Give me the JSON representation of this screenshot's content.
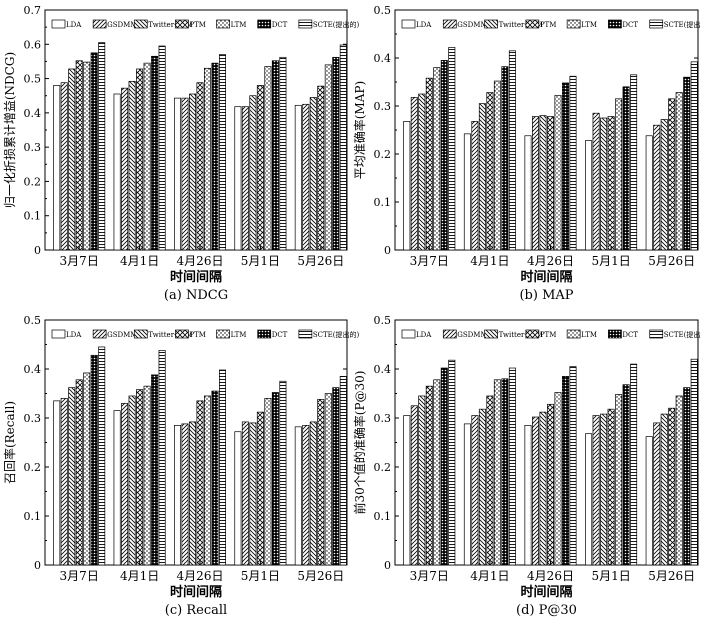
{
  "figure": {
    "colors": {
      "axis": "#000000",
      "background": "#ffffff",
      "bar_stroke": "#000000"
    },
    "legend_placement": "top",
    "series_patterns": [
      "blank",
      "diag-right",
      "diag-left",
      "cross",
      "dots",
      "checker",
      "horizontal"
    ]
  },
  "chart_data": [
    {
      "type": "bar",
      "caption": "(a) NDCG",
      "xlabel": "时间间隔",
      "ylabel": "归一化折损累计增益(NDCG)",
      "ylim": [
        0,
        0.7
      ],
      "yticks": [
        "0",
        "0.1",
        "0.2",
        "0.3",
        "0.4",
        "0.5",
        "0.6",
        "0.7"
      ],
      "categories": [
        "3月7日",
        "4月1日",
        "4月26日",
        "5月1日",
        "5月26日"
      ],
      "series": [
        {
          "name": "LDA",
          "values": [
            0.48,
            0.455,
            0.443,
            0.418,
            0.422
          ]
        },
        {
          "name": "GSDMM",
          "values": [
            0.488,
            0.472,
            0.443,
            0.418,
            0.425
          ]
        },
        {
          "name": "Twitter-TTM",
          "values": [
            0.528,
            0.492,
            0.455,
            0.45,
            0.445
          ]
        },
        {
          "name": "PTM",
          "values": [
            0.552,
            0.528,
            0.488,
            0.48,
            0.478
          ]
        },
        {
          "name": "LTM",
          "values": [
            0.548,
            0.545,
            0.53,
            0.535,
            0.54
          ]
        },
        {
          "name": "DCT",
          "values": [
            0.575,
            0.565,
            0.545,
            0.552,
            0.562
          ]
        },
        {
          "name": "SCTE(提出的)",
          "values": [
            0.605,
            0.595,
            0.57,
            0.562,
            0.598
          ]
        }
      ]
    },
    {
      "type": "bar",
      "caption": "(b) MAP",
      "xlabel": "时间间隔",
      "ylabel": "平均准确率(MAP)",
      "ylim": [
        0,
        0.5
      ],
      "yticks": [
        "0",
        "0.1",
        "0.2",
        "0.3",
        "0.4",
        "0.5"
      ],
      "categories": [
        "3月7日",
        "4月1日",
        "4月26日",
        "5月1日",
        "5月26日"
      ],
      "series": [
        {
          "name": "LDA",
          "values": [
            0.268,
            0.242,
            0.238,
            0.228,
            0.238
          ]
        },
        {
          "name": "GSDMM",
          "values": [
            0.318,
            0.268,
            0.278,
            0.285,
            0.26
          ]
        },
        {
          "name": "Twitter-TTM",
          "values": [
            0.325,
            0.305,
            0.28,
            0.275,
            0.272
          ]
        },
        {
          "name": "PTM",
          "values": [
            0.358,
            0.328,
            0.278,
            0.278,
            0.315
          ]
        },
        {
          "name": "LTM",
          "values": [
            0.38,
            0.352,
            0.322,
            0.315,
            0.328
          ]
        },
        {
          "name": "DCT",
          "values": [
            0.395,
            0.382,
            0.348,
            0.34,
            0.36
          ]
        },
        {
          "name": "SCTE(提出的)",
          "values": [
            0.422,
            0.415,
            0.362,
            0.365,
            0.392
          ]
        }
      ]
    },
    {
      "type": "bar",
      "caption": "(c) Recall",
      "xlabel": "时间间隔",
      "ylabel": "召回率(Recall)",
      "ylim": [
        0,
        0.5
      ],
      "yticks": [
        "0",
        "0.1",
        "0.2",
        "0.3",
        "0.4",
        "0.5"
      ],
      "categories": [
        "3月7日",
        "4月1日",
        "4月26日",
        "5月1日",
        "5月26日"
      ],
      "series": [
        {
          "name": "LDA",
          "values": [
            0.335,
            0.315,
            0.285,
            0.272,
            0.282
          ]
        },
        {
          "name": "GSDMM",
          "values": [
            0.34,
            0.33,
            0.288,
            0.292,
            0.285
          ]
        },
        {
          "name": "Twitter-TTM",
          "values": [
            0.362,
            0.345,
            0.292,
            0.29,
            0.292
          ]
        },
        {
          "name": "PTM",
          "values": [
            0.378,
            0.358,
            0.335,
            0.312,
            0.338
          ]
        },
        {
          "name": "LTM",
          "values": [
            0.392,
            0.365,
            0.345,
            0.34,
            0.35
          ]
        },
        {
          "name": "DCT",
          "values": [
            0.428,
            0.388,
            0.355,
            0.352,
            0.362
          ]
        },
        {
          "name": "SCTE(提出的)",
          "values": [
            0.445,
            0.438,
            0.398,
            0.375,
            0.385
          ]
        }
      ]
    },
    {
      "type": "bar",
      "caption": "(d) P@30",
      "xlabel": "时间间隔",
      "ylabel": "前30个值的准确率(P@30)",
      "ylim": [
        0,
        0.5
      ],
      "yticks": [
        "0",
        "0.1",
        "0.2",
        "0.3",
        "0.4",
        "0.5"
      ],
      "categories": [
        "3月7日",
        "4月1日",
        "4月26日",
        "5月1日",
        "5月26日"
      ],
      "series": [
        {
          "name": "LDA",
          "values": [
            0.305,
            0.288,
            0.285,
            0.268,
            0.262
          ]
        },
        {
          "name": "GSDMM",
          "values": [
            0.325,
            0.305,
            0.302,
            0.305,
            0.29
          ]
        },
        {
          "name": "Twitter-TTM",
          "values": [
            0.345,
            0.318,
            0.312,
            0.308,
            0.308
          ]
        },
        {
          "name": "PTM",
          "values": [
            0.365,
            0.345,
            0.328,
            0.318,
            0.32
          ]
        },
        {
          "name": "LTM",
          "values": [
            0.378,
            0.378,
            0.352,
            0.348,
            0.345
          ]
        },
        {
          "name": "DCT",
          "values": [
            0.402,
            0.38,
            0.385,
            0.368,
            0.362
          ]
        },
        {
          "name": "SCTE(提出的)",
          "values": [
            0.418,
            0.402,
            0.405,
            0.41,
            0.42
          ]
        }
      ]
    }
  ]
}
